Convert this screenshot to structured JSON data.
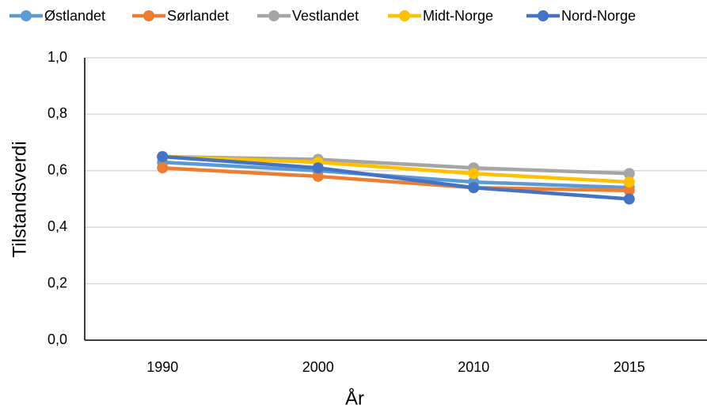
{
  "chart_data": {
    "type": "line",
    "categories": [
      "1990",
      "2000",
      "2010",
      "2015"
    ],
    "series": [
      {
        "name": "Østlandet",
        "color": "#5b9bd5",
        "values": [
          0.63,
          0.6,
          0.56,
          0.54
        ]
      },
      {
        "name": "Sørlandet",
        "color": "#ed7d31",
        "values": [
          0.61,
          0.58,
          0.54,
          0.53
        ]
      },
      {
        "name": "Vestlandet",
        "color": "#a5a5a5",
        "values": [
          0.65,
          0.64,
          0.61,
          0.59
        ]
      },
      {
        "name": "Midt-Norge",
        "color": "#ffc000",
        "values": [
          0.65,
          0.63,
          0.59,
          0.56
        ]
      },
      {
        "name": "Nord-Norge",
        "color": "#4472c4",
        "values": [
          0.65,
          0.61,
          0.54,
          0.5
        ]
      }
    ],
    "ylim": [
      0,
      1
    ],
    "yticks": [
      {
        "value": 0,
        "label": "0,0"
      },
      {
        "value": 0.2,
        "label": "0,2"
      },
      {
        "value": 0.4,
        "label": "0,4"
      },
      {
        "value": 0.6,
        "label": "0,6"
      },
      {
        "value": 0.8,
        "label": "0,8"
      },
      {
        "value": 1,
        "label": "1,0"
      }
    ],
    "x_label": "År",
    "y_label": "Tilstandsverdi",
    "grid": true,
    "legend": "top"
  }
}
